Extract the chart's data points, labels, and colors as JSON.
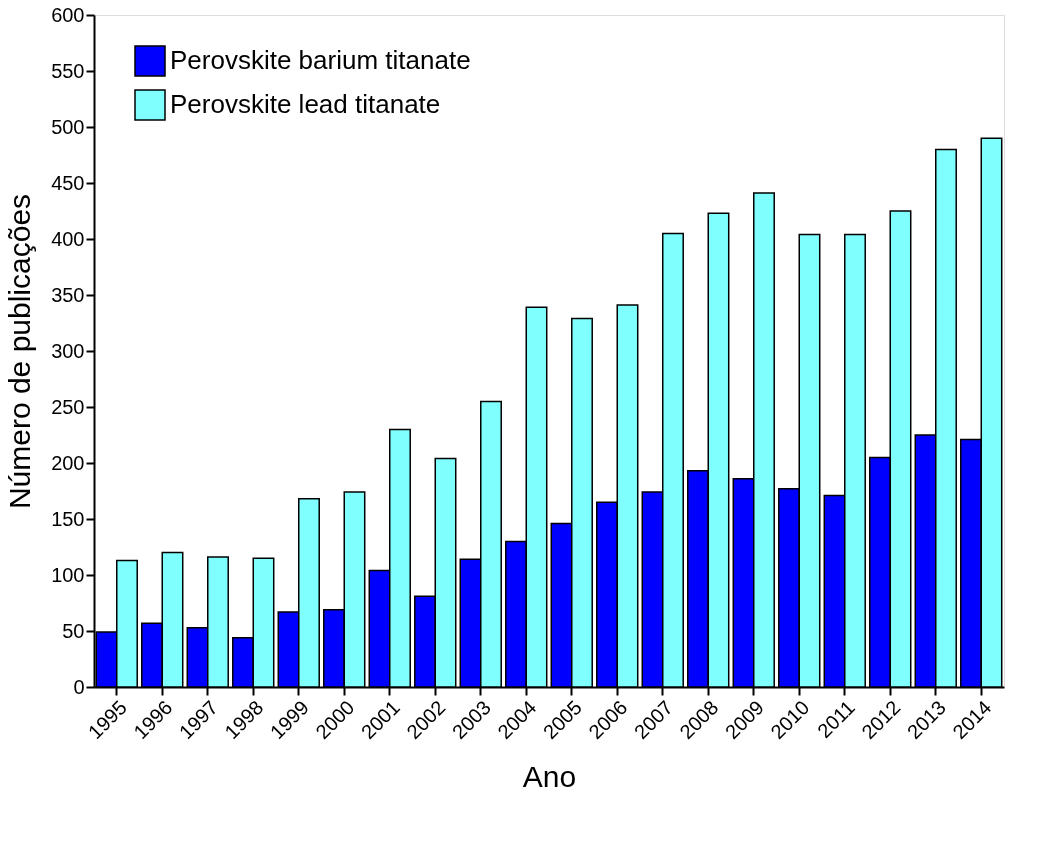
{
  "chart_data": {
    "type": "bar",
    "xlabel": "Ano",
    "ylabel": "Número de publicações",
    "categories": [
      "1995",
      "1996",
      "1997",
      "1998",
      "1999",
      "2000",
      "2001",
      "2002",
      "2003",
      "2004",
      "2005",
      "2006",
      "2007",
      "2008",
      "2009",
      "2010",
      "2011",
      "2012",
      "2013",
      "2014"
    ],
    "series": [
      {
        "name": "Perovskite barium titanate",
        "color": "#0000ff",
        "values": [
          49,
          57,
          53,
          44,
          67,
          69,
          104,
          81,
          114,
          130,
          146,
          165,
          174,
          193,
          186,
          177,
          171,
          205,
          225,
          221
        ]
      },
      {
        "name": "Perovskite lead titanate",
        "color": "#80ffff",
        "values": [
          113,
          120,
          116,
          115,
          168,
          174,
          230,
          204,
          255,
          339,
          329,
          341,
          405,
          423,
          441,
          404,
          404,
          425,
          480,
          490
        ]
      }
    ],
    "ylim": [
      0,
      600
    ],
    "yticks": [
      0,
      50,
      100,
      150,
      200,
      250,
      300,
      350,
      400,
      450,
      500,
      550,
      600
    ],
    "grid": false,
    "legend": "top left"
  }
}
